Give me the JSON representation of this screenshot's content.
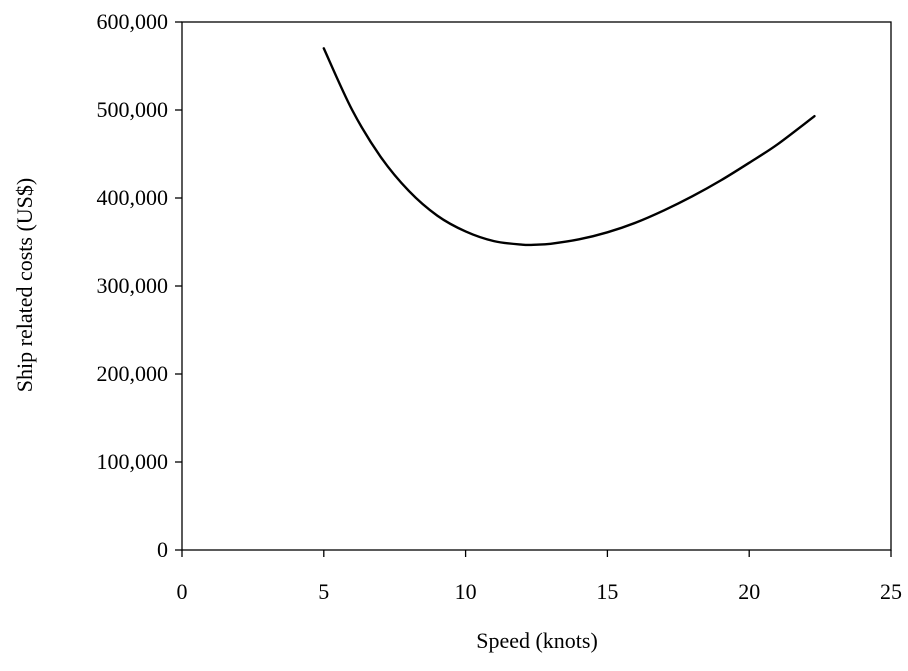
{
  "chart_data": {
    "type": "line",
    "title": "",
    "xlabel": "Speed (knots)",
    "ylabel": "Ship related costs (US$)",
    "xlim": [
      0,
      25
    ],
    "ylim": [
      0,
      600000
    ],
    "x_ticks": [
      0,
      5,
      10,
      15,
      20,
      25
    ],
    "y_ticks": [
      0,
      100000,
      200000,
      300000,
      400000,
      500000,
      600000
    ],
    "x_tick_labels": [
      "0",
      "5",
      "10",
      "15",
      "20",
      "25"
    ],
    "y_tick_labels": [
      "0",
      "100,000",
      "200,000",
      "300,000",
      "400,000",
      "500,000",
      "600,000"
    ],
    "grid": false,
    "legend": "none",
    "series": [
      {
        "color": "#000000",
        "x": [
          5,
          6,
          7,
          8,
          9,
          10,
          11,
          12,
          12.5,
          13,
          14,
          15,
          16,
          17,
          18,
          19,
          20,
          21,
          22.3
        ],
        "y": [
          570000,
          500000,
          447000,
          408000,
          380000,
          362000,
          351000,
          347000,
          347000,
          348000,
          353000,
          361000,
          372000,
          386000,
          402000,
          420000,
          440000,
          461000,
          493000
        ]
      }
    ]
  }
}
